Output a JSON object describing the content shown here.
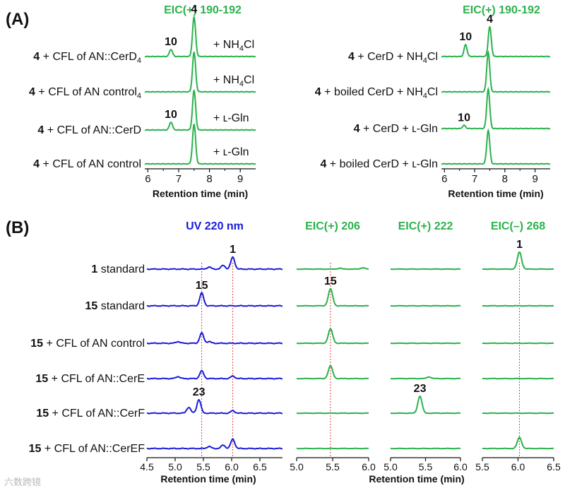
{
  "colors": {
    "green": "#2bb24c",
    "blue": "#1a1adb",
    "black": "#111111",
    "refline": "#e0443c"
  },
  "panel_a": {
    "label": "(A)",
    "xlabel": "Retention time (min)",
    "left": {
      "title": "EIC(+) 190-192",
      "ticks": [
        "6",
        "7",
        "8",
        "9"
      ],
      "rows": [
        {
          "bold": "4",
          "rest": " + CFL of AN::CerD",
          "note": "+ NH",
          "sub": "4",
          "note_tail": "Cl",
          "peaks": [
            {
              "label": "10",
              "x": 6.75,
              "h": 0.18
            },
            {
              "label": "4",
              "x": 7.5,
              "h": 1.0
            }
          ]
        },
        {
          "bold": "4",
          "rest": " + CFL of AN control",
          "note": "+ NH",
          "sub": "4",
          "note_tail": "Cl",
          "peaks": [
            {
              "label": "",
              "x": 7.5,
              "h": 1.0
            }
          ]
        },
        {
          "bold": "4",
          "rest": " + CFL of AN::CerD",
          "note": "+ ʟ-Gln",
          "sub": "",
          "note_tail": "",
          "peaks": [
            {
              "label": "10",
              "x": 6.75,
              "h": 0.2
            },
            {
              "label": "",
              "x": 7.5,
              "h": 1.0
            }
          ]
        },
        {
          "bold": "4",
          "rest": " + CFL of AN control",
          "note": "+ ʟ-Gln",
          "sub": "",
          "note_tail": "",
          "peaks": [
            {
              "label": "",
              "x": 7.5,
              "h": 1.0
            }
          ]
        }
      ]
    },
    "right": {
      "title": "EIC(+) 190-192",
      "ticks": [
        "6",
        "7",
        "8",
        "9"
      ],
      "rows": [
        {
          "bold": "4",
          "rest": " + CerD + NH",
          "sub": "4",
          "tail": "Cl",
          "peaks": [
            {
              "label": "10",
              "x": 6.7,
              "h": 0.3
            },
            {
              "label": "4",
              "x": 7.5,
              "h": 0.75
            }
          ]
        },
        {
          "bold": "4",
          "rest": " + boiled CerD + NH",
          "sub": "4",
          "tail": "Cl",
          "peaks": [
            {
              "label": "",
              "x": 7.45,
              "h": 1.0
            }
          ]
        },
        {
          "bold": "4",
          "rest": " + CerD + ʟ-Gln",
          "sub": "",
          "tail": "",
          "peaks": [
            {
              "label": "10",
              "x": 6.65,
              "h": 0.08
            },
            {
              "label": "",
              "x": 7.45,
              "h": 1.0
            }
          ]
        },
        {
          "bold": "4",
          "rest": " + boiled CerD + ʟ-Gln",
          "sub": "",
          "tail": "",
          "peaks": [
            {
              "label": "",
              "x": 7.45,
              "h": 0.85
            }
          ]
        }
      ]
    }
  },
  "panel_b": {
    "label": "(B)",
    "xlabel": "Retention time (min)",
    "rows": [
      {
        "bold": "1",
        "rest": " standard"
      },
      {
        "bold": "15",
        "rest": " standard"
      },
      {
        "bold": "15",
        "rest": " + CFL of AN control"
      },
      {
        "bold": "15",
        "rest": " + CFL of AN::CerE"
      },
      {
        "bold": "15",
        "rest": " + CFL of AN::CerF"
      },
      {
        "bold": "15",
        "rest": " + CFL of AN::CerEF"
      }
    ],
    "subpanels": [
      {
        "title": "UV 220 nm",
        "color": "blue",
        "xmin": 4.5,
        "xmax": 6.9,
        "ticks": [
          "4.5",
          "5.0",
          "5.5",
          "6.0",
          "6.5"
        ],
        "reflines": [
          5.47,
          6.02
        ],
        "traces": [
          {
            "peaks": [
              {
                "label": "1",
                "x": 6.02,
                "h": 0.7
              },
              {
                "label": "",
                "x": 5.85,
                "h": 0.22
              },
              {
                "label": "",
                "x": 5.6,
                "h": 0.12
              }
            ]
          },
          {
            "peaks": [
              {
                "label": "15",
                "x": 5.47,
                "h": 0.75
              }
            ]
          },
          {
            "peaks": [
              {
                "label": "",
                "x": 5.47,
                "h": 0.6
              },
              {
                "label": "",
                "x": 5.05,
                "h": 0.1
              },
              {
                "label": "",
                "x": 5.6,
                "h": 0.1
              }
            ]
          },
          {
            "peaks": [
              {
                "label": "",
                "x": 5.47,
                "h": 0.45
              },
              {
                "label": "",
                "x": 5.05,
                "h": 0.12
              },
              {
                "label": "",
                "x": 6.02,
                "h": 0.15
              }
            ]
          },
          {
            "peaks": [
              {
                "label": "23",
                "x": 5.42,
                "h": 0.8
              },
              {
                "label": "",
                "x": 5.24,
                "h": 0.35
              },
              {
                "label": "",
                "x": 6.02,
                "h": 0.15
              }
            ]
          },
          {
            "peaks": [
              {
                "label": "",
                "x": 6.02,
                "h": 0.55
              },
              {
                "label": "",
                "x": 5.85,
                "h": 0.2
              },
              {
                "label": "",
                "x": 5.6,
                "h": 0.12
              }
            ]
          }
        ]
      },
      {
        "title": "EIC(+) 206",
        "color": "green",
        "xmin": 5.0,
        "xmax": 6.0,
        "ticks": [
          "5.0",
          "5.5",
          "6.0"
        ],
        "reflines": [
          5.47
        ],
        "traces": [
          {
            "peaks": [
              {
                "label": "",
                "x": 5.92,
                "h": 0.08
              },
              {
                "label": "",
                "x": 5.6,
                "h": 0.05
              }
            ]
          },
          {
            "peaks": [
              {
                "label": "15",
                "x": 5.47,
                "h": 1.0
              }
            ]
          },
          {
            "peaks": [
              {
                "label": "",
                "x": 5.47,
                "h": 0.85
              }
            ]
          },
          {
            "peaks": [
              {
                "label": "",
                "x": 5.47,
                "h": 0.75
              }
            ]
          },
          {
            "peaks": []
          },
          {
            "peaks": []
          }
        ]
      },
      {
        "title": "EIC(+) 222",
        "color": "green",
        "xmin": 5.0,
        "xmax": 6.0,
        "ticks": [
          "5.0",
          "5.5",
          "6.0"
        ],
        "reflines": [],
        "traces": [
          {
            "peaks": []
          },
          {
            "peaks": []
          },
          {
            "peaks": []
          },
          {
            "peaks": [
              {
                "label": "",
                "x": 5.55,
                "h": 0.1
              }
            ]
          },
          {
            "peaks": [
              {
                "label": "23",
                "x": 5.42,
                "h": 1.0
              }
            ]
          },
          {
            "peaks": []
          }
        ]
      },
      {
        "title": "EIC(–) 268",
        "color": "green",
        "xmin": 5.5,
        "xmax": 6.5,
        "ticks": [
          "5.5",
          "6.0",
          "6.5"
        ],
        "reflines": [
          6.02
        ],
        "traces": [
          {
            "peaks": [
              {
                "label": "1",
                "x": 6.02,
                "h": 1.0
              }
            ]
          },
          {
            "peaks": []
          },
          {
            "peaks": []
          },
          {
            "peaks": []
          },
          {
            "peaks": []
          },
          {
            "peaks": [
              {
                "label": "",
                "x": 6.02,
                "h": 0.65
              }
            ]
          }
        ]
      }
    ]
  },
  "chart_data": [
    {
      "type": "line",
      "title": "EIC(+) 190-192",
      "xlabel": "Retention time (min)",
      "ylabel": "",
      "xlim": [
        5.9,
        9.5
      ],
      "x_ticks": [
        6,
        7,
        8,
        9
      ],
      "series": [
        {
          "name": "4 + CFL of AN::CerD + NH4Cl",
          "peaks": [
            {
              "compound": "10",
              "rt": 6.75,
              "rel_height": 0.18
            },
            {
              "compound": "4",
              "rt": 7.5,
              "rel_height": 1.0
            }
          ]
        },
        {
          "name": "4 + CFL of AN control + NH4Cl",
          "peaks": [
            {
              "compound": "4",
              "rt": 7.5,
              "rel_height": 1.0
            }
          ]
        },
        {
          "name": "4 + CFL of AN::CerD + L-Gln",
          "peaks": [
            {
              "compound": "10",
              "rt": 6.75,
              "rel_height": 0.2
            },
            {
              "compound": "4",
              "rt": 7.5,
              "rel_height": 1.0
            }
          ]
        },
        {
          "name": "4 + CFL of AN control + L-Gln",
          "peaks": [
            {
              "compound": "4",
              "rt": 7.5,
              "rel_height": 1.0
            }
          ]
        }
      ]
    },
    {
      "type": "line",
      "title": "EIC(+) 190-192",
      "xlabel": "Retention time (min)",
      "ylabel": "",
      "xlim": [
        5.9,
        9.5
      ],
      "x_ticks": [
        6,
        7,
        8,
        9
      ],
      "series": [
        {
          "name": "4 + CerD + NH4Cl",
          "peaks": [
            {
              "compound": "10",
              "rt": 6.7,
              "rel_height": 0.3
            },
            {
              "compound": "4",
              "rt": 7.5,
              "rel_height": 0.75
            }
          ]
        },
        {
          "name": "4 + boiled CerD + NH4Cl",
          "peaks": [
            {
              "compound": "4",
              "rt": 7.45,
              "rel_height": 1.0
            }
          ]
        },
        {
          "name": "4 + CerD + L-Gln",
          "peaks": [
            {
              "compound": "10",
              "rt": 6.65,
              "rel_height": 0.08
            },
            {
              "compound": "4",
              "rt": 7.45,
              "rel_height": 1.0
            }
          ]
        },
        {
          "name": "4 + boiled CerD + L-Gln",
          "peaks": [
            {
              "compound": "4",
              "rt": 7.45,
              "rel_height": 0.85
            }
          ]
        }
      ]
    },
    {
      "type": "line",
      "title": "UV 220 nm",
      "xlabel": "Retention time (min)",
      "xlim": [
        4.5,
        6.9
      ],
      "x_ticks": [
        4.5,
        5.0,
        5.5,
        6.0,
        6.5
      ],
      "annotated_peaks": [
        {
          "compound": "1",
          "rt": 6.02
        },
        {
          "compound": "15",
          "rt": 5.47
        },
        {
          "compound": "23",
          "rt": 5.42
        }
      ]
    },
    {
      "type": "line",
      "title": "EIC(+) 206",
      "xlabel": "Retention time (min)",
      "xlim": [
        5.0,
        6.0
      ],
      "x_ticks": [
        5.0,
        5.5,
        6.0
      ],
      "annotated_peaks": [
        {
          "compound": "15",
          "rt": 5.47
        }
      ]
    },
    {
      "type": "line",
      "title": "EIC(+) 222",
      "xlabel": "Retention time (min)",
      "xlim": [
        5.0,
        6.0
      ],
      "x_ticks": [
        5.0,
        5.5,
        6.0
      ],
      "annotated_peaks": [
        {
          "compound": "23",
          "rt": 5.42
        }
      ]
    },
    {
      "type": "line",
      "title": "EIC(–) 268",
      "xlabel": "Retention time (min)",
      "xlim": [
        5.5,
        6.5
      ],
      "x_ticks": [
        5.5,
        6.0,
        6.5
      ],
      "annotated_peaks": [
        {
          "compound": "1",
          "rt": 6.02
        }
      ]
    }
  ],
  "watermark": "六数跨镜"
}
